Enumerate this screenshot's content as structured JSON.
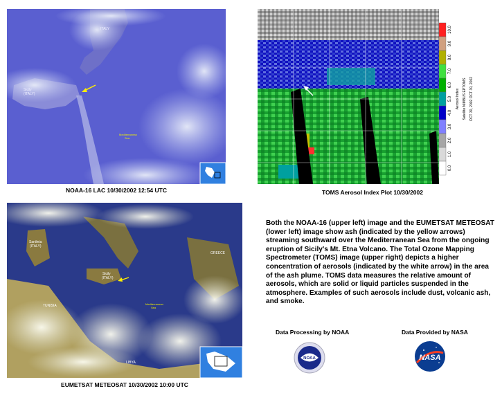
{
  "images": {
    "noaa": {
      "caption": "NOAA-16 LAC  10/30/2002  12:54 UTC",
      "labels": {
        "italy": "ITALY",
        "sicily": "Sicily\n(ITALY)",
        "sea": "Mediterranean\nSea"
      }
    },
    "toms": {
      "caption": "TOMS Aerosol Index Plot 10/30/2002",
      "legend_values": [
        "0.0",
        "1.0",
        "2.0",
        "3.0",
        "4.0",
        "5.0",
        "6.0",
        "7.0",
        "8.0",
        "9.0",
        "10.0"
      ],
      "legend_colors": [
        "#ffffff",
        "#d9d9d9",
        "#a6a6a6",
        "#8080ff",
        "#0000c8",
        "#00a0a0",
        "#00b000",
        "#40e040",
        "#b0b000",
        "#d0a080",
        "#ff2020"
      ],
      "side_text": "Aerosol Index\nSatellite NIMBUS EPTOMS\nOCT 30, 2002 OCT 30, 2002"
    },
    "meteosat": {
      "caption": "EUMETSAT METEOSAT 10/30/2002  10:00 UTC",
      "labels": {
        "sardinia": "Sardinia\n(ITALY)",
        "sicily": "Sicily\n(ITALY)",
        "tunisia": "TUNISIA",
        "greece": "GREECE",
        "libya": "LIBYA",
        "sea": "Mediterranean\nSea"
      }
    }
  },
  "description": "Both the NOAA-16 (upper left) image and the EUMETSAT METEOSAT (lower left) image show ash (indicated by the yellow arrows) streaming southward over the Mediterranean Sea from the ongoing eruption of Sicily's Mt. Etna Volcano. The Total Ozone Mapping Spectrometer (TOMS) image (upper right) depicts a higher concentration of aerosols (indicated by the white arrow) in the area of the ash plume.  TOMS data measures the relative amount of aerosols, which are solid or liquid particles suspended in the atmosphere.  Examples of such aerosols include dust, volcanic ash, and smoke.",
  "credits": {
    "noaa": "Data Processing by NOAA",
    "nasa": "Data Provided by NASA",
    "noaa_logo_text": "NOAA",
    "nasa_logo_text": "NASA"
  },
  "colors": {
    "noaa_bg": "#5a5fd0",
    "toms_bg": "#1a7a2a",
    "meteosat_sea": "#2a3a8a",
    "arrow_yellow": "#ffee00"
  }
}
